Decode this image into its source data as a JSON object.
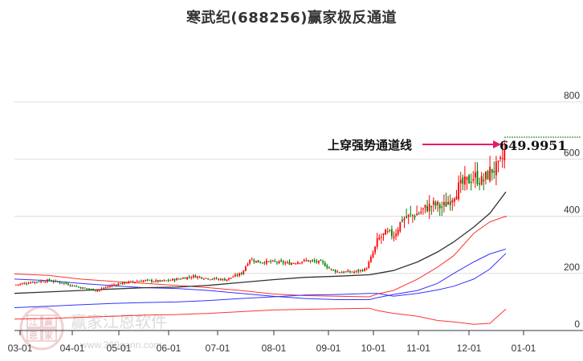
{
  "title": "寒武纪(688256)赢家极反通道",
  "colors": {
    "up": "#ff0000",
    "down": "#008000",
    "outer_band": "#ff3333",
    "inner_band": "#3333ff",
    "mid_line": "#333333",
    "annotation_arrow": "#e8186e",
    "price_marker": "#008000",
    "grid": "#dddddd"
  },
  "watermark": {
    "brand": "赢家江恩软件",
    "url": "www.360gann.com",
    "seal": [
      "江",
      "赢",
      "恩",
      "家"
    ]
  },
  "annotation": {
    "label": "上穿强势通道线",
    "value": "649.9951"
  },
  "chart_data": {
    "type": "candlestick",
    "title": "寒武纪(688256)赢家极反通道",
    "xlabel": "",
    "ylabel": "",
    "ylim": [
      0,
      800
    ],
    "y_ticks": [
      0,
      200,
      400,
      600,
      800
    ],
    "x_ticks": [
      "03-01",
      "04-01",
      "05-01",
      "06-01",
      "07-01",
      "08-01",
      "09-01",
      "10-01",
      "11-01",
      "12-01",
      "01-01"
    ],
    "grid": true,
    "y_axis_position": "right",
    "last_price": 649.9951,
    "series": [
      {
        "name": "outer_upper_band",
        "color": "#ff3333",
        "points": [
          [
            18,
            198
          ],
          [
            60,
            193
          ],
          [
            100,
            180
          ],
          [
            140,
            172
          ],
          [
            180,
            165
          ],
          [
            220,
            158
          ],
          [
            260,
            150
          ],
          [
            300,
            140
          ],
          [
            340,
            128
          ],
          [
            380,
            122
          ],
          [
            420,
            120
          ],
          [
            460,
            118
          ],
          [
            470,
            128
          ],
          [
            490,
            140
          ],
          [
            520,
            180
          ],
          [
            545,
            222
          ],
          [
            565,
            262
          ],
          [
            590,
            340
          ],
          [
            610,
            380
          ],
          [
            630,
            400
          ],
          [
            630,
            396
          ]
        ]
      },
      {
        "name": "inner_upper_band",
        "color": "#3333ff",
        "points": [
          [
            18,
            180
          ],
          [
            60,
            175
          ],
          [
            100,
            165
          ],
          [
            140,
            157
          ],
          [
            180,
            150
          ],
          [
            220,
            147
          ],
          [
            260,
            140
          ],
          [
            300,
            130
          ],
          [
            340,
            120
          ],
          [
            380,
            112
          ],
          [
            420,
            108
          ],
          [
            460,
            108
          ],
          [
            470,
            115
          ],
          [
            490,
            126
          ],
          [
            520,
            140
          ],
          [
            545,
            165
          ],
          [
            565,
            200
          ],
          [
            590,
            240
          ],
          [
            610,
            268
          ],
          [
            630,
            285
          ]
        ]
      },
      {
        "name": "mid_line",
        "color": "#333333",
        "points": [
          [
            18,
            130
          ],
          [
            60,
            135
          ],
          [
            100,
            140
          ],
          [
            140,
            145
          ],
          [
            180,
            150
          ],
          [
            220,
            152
          ],
          [
            260,
            158
          ],
          [
            300,
            168
          ],
          [
            340,
            178
          ],
          [
            380,
            186
          ],
          [
            420,
            190
          ],
          [
            460,
            195
          ],
          [
            470,
            200
          ],
          [
            490,
            210
          ],
          [
            520,
            240
          ],
          [
            545,
            275
          ],
          [
            565,
            310
          ],
          [
            590,
            362
          ],
          [
            610,
            410
          ],
          [
            630,
            485
          ]
        ]
      },
      {
        "name": "inner_lower_band",
        "color": "#3333ff",
        "points": [
          [
            18,
            80
          ],
          [
            60,
            85
          ],
          [
            100,
            90
          ],
          [
            140,
            95
          ],
          [
            180,
            98
          ],
          [
            220,
            100
          ],
          [
            260,
            105
          ],
          [
            300,
            112
          ],
          [
            340,
            118
          ],
          [
            380,
            124
          ],
          [
            420,
            126
          ],
          [
            460,
            130
          ],
          [
            470,
            130
          ],
          [
            490,
            120
          ],
          [
            520,
            130
          ],
          [
            545,
            142
          ],
          [
            565,
            155
          ],
          [
            590,
            180
          ],
          [
            610,
            215
          ],
          [
            630,
            270
          ]
        ]
      },
      {
        "name": "outer_lower_band",
        "color": "#ff3333",
        "points": [
          [
            18,
            40
          ],
          [
            60,
            42
          ],
          [
            100,
            46
          ],
          [
            140,
            50
          ],
          [
            180,
            54
          ],
          [
            220,
            56
          ],
          [
            260,
            60
          ],
          [
            300,
            66
          ],
          [
            340,
            72
          ],
          [
            380,
            74
          ],
          [
            420,
            76
          ],
          [
            460,
            78
          ],
          [
            470,
            70
          ],
          [
            490,
            60
          ],
          [
            520,
            50
          ],
          [
            545,
            35
          ],
          [
            565,
            30
          ],
          [
            590,
            22
          ],
          [
            610,
            25
          ],
          [
            630,
            75
          ]
        ]
      }
    ],
    "candles_approx": {
      "description": "Daily OHLC candlesticks from ~Mar to mid-Dec; price ~160-200 until Oct, gap-up to ~300-350 in early Oct, rising to ~480-560 in Nov, spiking to ~650 in mid-Dec",
      "close_path": [
        [
          18,
          160
        ],
        [
          40,
          170
        ],
        [
          60,
          175
        ],
        [
          80,
          165
        ],
        [
          100,
          150
        ],
        [
          120,
          140
        ],
        [
          140,
          160
        ],
        [
          160,
          170
        ],
        [
          180,
          175
        ],
        [
          200,
          172
        ],
        [
          220,
          180
        ],
        [
          240,
          190
        ],
        [
          260,
          182
        ],
        [
          280,
          178
        ],
        [
          300,
          200
        ],
        [
          310,
          250
        ],
        [
          320,
          240
        ],
        [
          340,
          240
        ],
        [
          360,
          235
        ],
        [
          380,
          245
        ],
        [
          400,
          238
        ],
        [
          410,
          215
        ],
        [
          420,
          205
        ],
        [
          440,
          205
        ],
        [
          455,
          215
        ],
        [
          462,
          260
        ],
        [
          470,
          320
        ],
        [
          480,
          340
        ],
        [
          490,
          335
        ],
        [
          500,
          390
        ],
        [
          510,
          400
        ],
        [
          520,
          410
        ],
        [
          530,
          430
        ],
        [
          540,
          440
        ],
        [
          550,
          430
        ],
        [
          560,
          460
        ],
        [
          570,
          500
        ],
        [
          580,
          520
        ],
        [
          590,
          540
        ],
        [
          600,
          520
        ],
        [
          610,
          560
        ],
        [
          620,
          570
        ],
        [
          626,
          610
        ],
        [
          630,
          650
        ]
      ]
    }
  }
}
